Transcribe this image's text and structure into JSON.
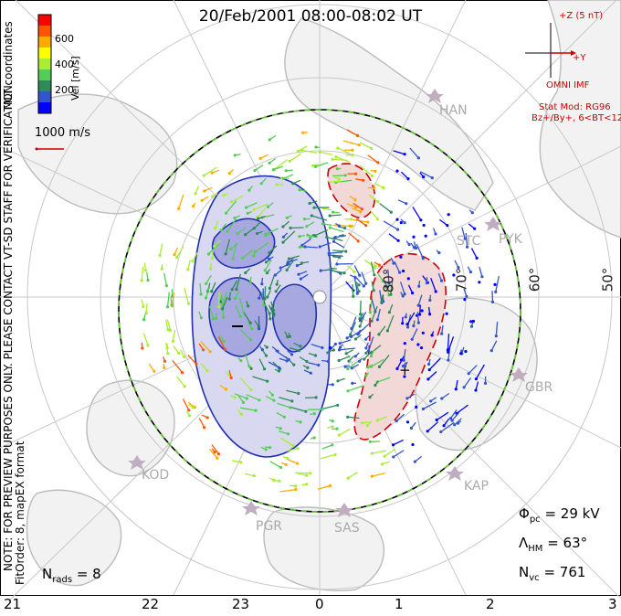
{
  "title": "20/Feb/2001 08:00-08:02 UT",
  "colorbar": {
    "ticks": [
      "600",
      "400",
      "200"
    ],
    "label": "Vel [m/s]",
    "colors": [
      "#ff0000",
      "#ff5500",
      "#ffaa00",
      "#ffff00",
      "#aaee33",
      "#55cc55",
      "#2e8b57",
      "#3355cc",
      "#0000ff"
    ]
  },
  "coord_label": "MLT coordinates",
  "side_note": "NOTE: FOR PREVIEW PURPOSES ONLY. PLEASE CONTACT VT-SD STAFF FOR VERIFICATION.",
  "fit_note": "FitOrder: 8, mapEX format",
  "scale_vector": "1000 m/s",
  "imf": {
    "z_label": "+Z (5 nT)",
    "y_label": "+Y",
    "source": "OMNI IMF",
    "model": "Stat Mod: RG96",
    "conditions": "Bz+/By+, 6<BT<12"
  },
  "stations": [
    "HAN",
    "STC",
    "PYK",
    "GBR",
    "KOD",
    "KAP",
    "PGR",
    "SAS"
  ],
  "latitude_labels": [
    "80°",
    "70°",
    "60°",
    "50°"
  ],
  "mlt_labels": [
    "21",
    "22",
    "23",
    "0",
    "1",
    "2",
    "3"
  ],
  "stats": {
    "phi_pc": "Φ",
    "phi_pc_sub": "pc",
    "phi_pc_value": "= 29 kV",
    "lambda_hm": "Λ",
    "lambda_hm_sub": "HM",
    "lambda_hm_value": "= 63°",
    "n_vc": "N",
    "n_vc_sub": "vc",
    "n_vc_value": "= 761",
    "n_rads": "N",
    "n_rads_sub": "rads",
    "n_rads_value": "= 8"
  },
  "colors": {
    "negative_cell": "#3b3bd0",
    "positive_cell": "#cc0000",
    "boundary_green": "#66cc33",
    "map_grey": "#bbbbbb"
  }
}
